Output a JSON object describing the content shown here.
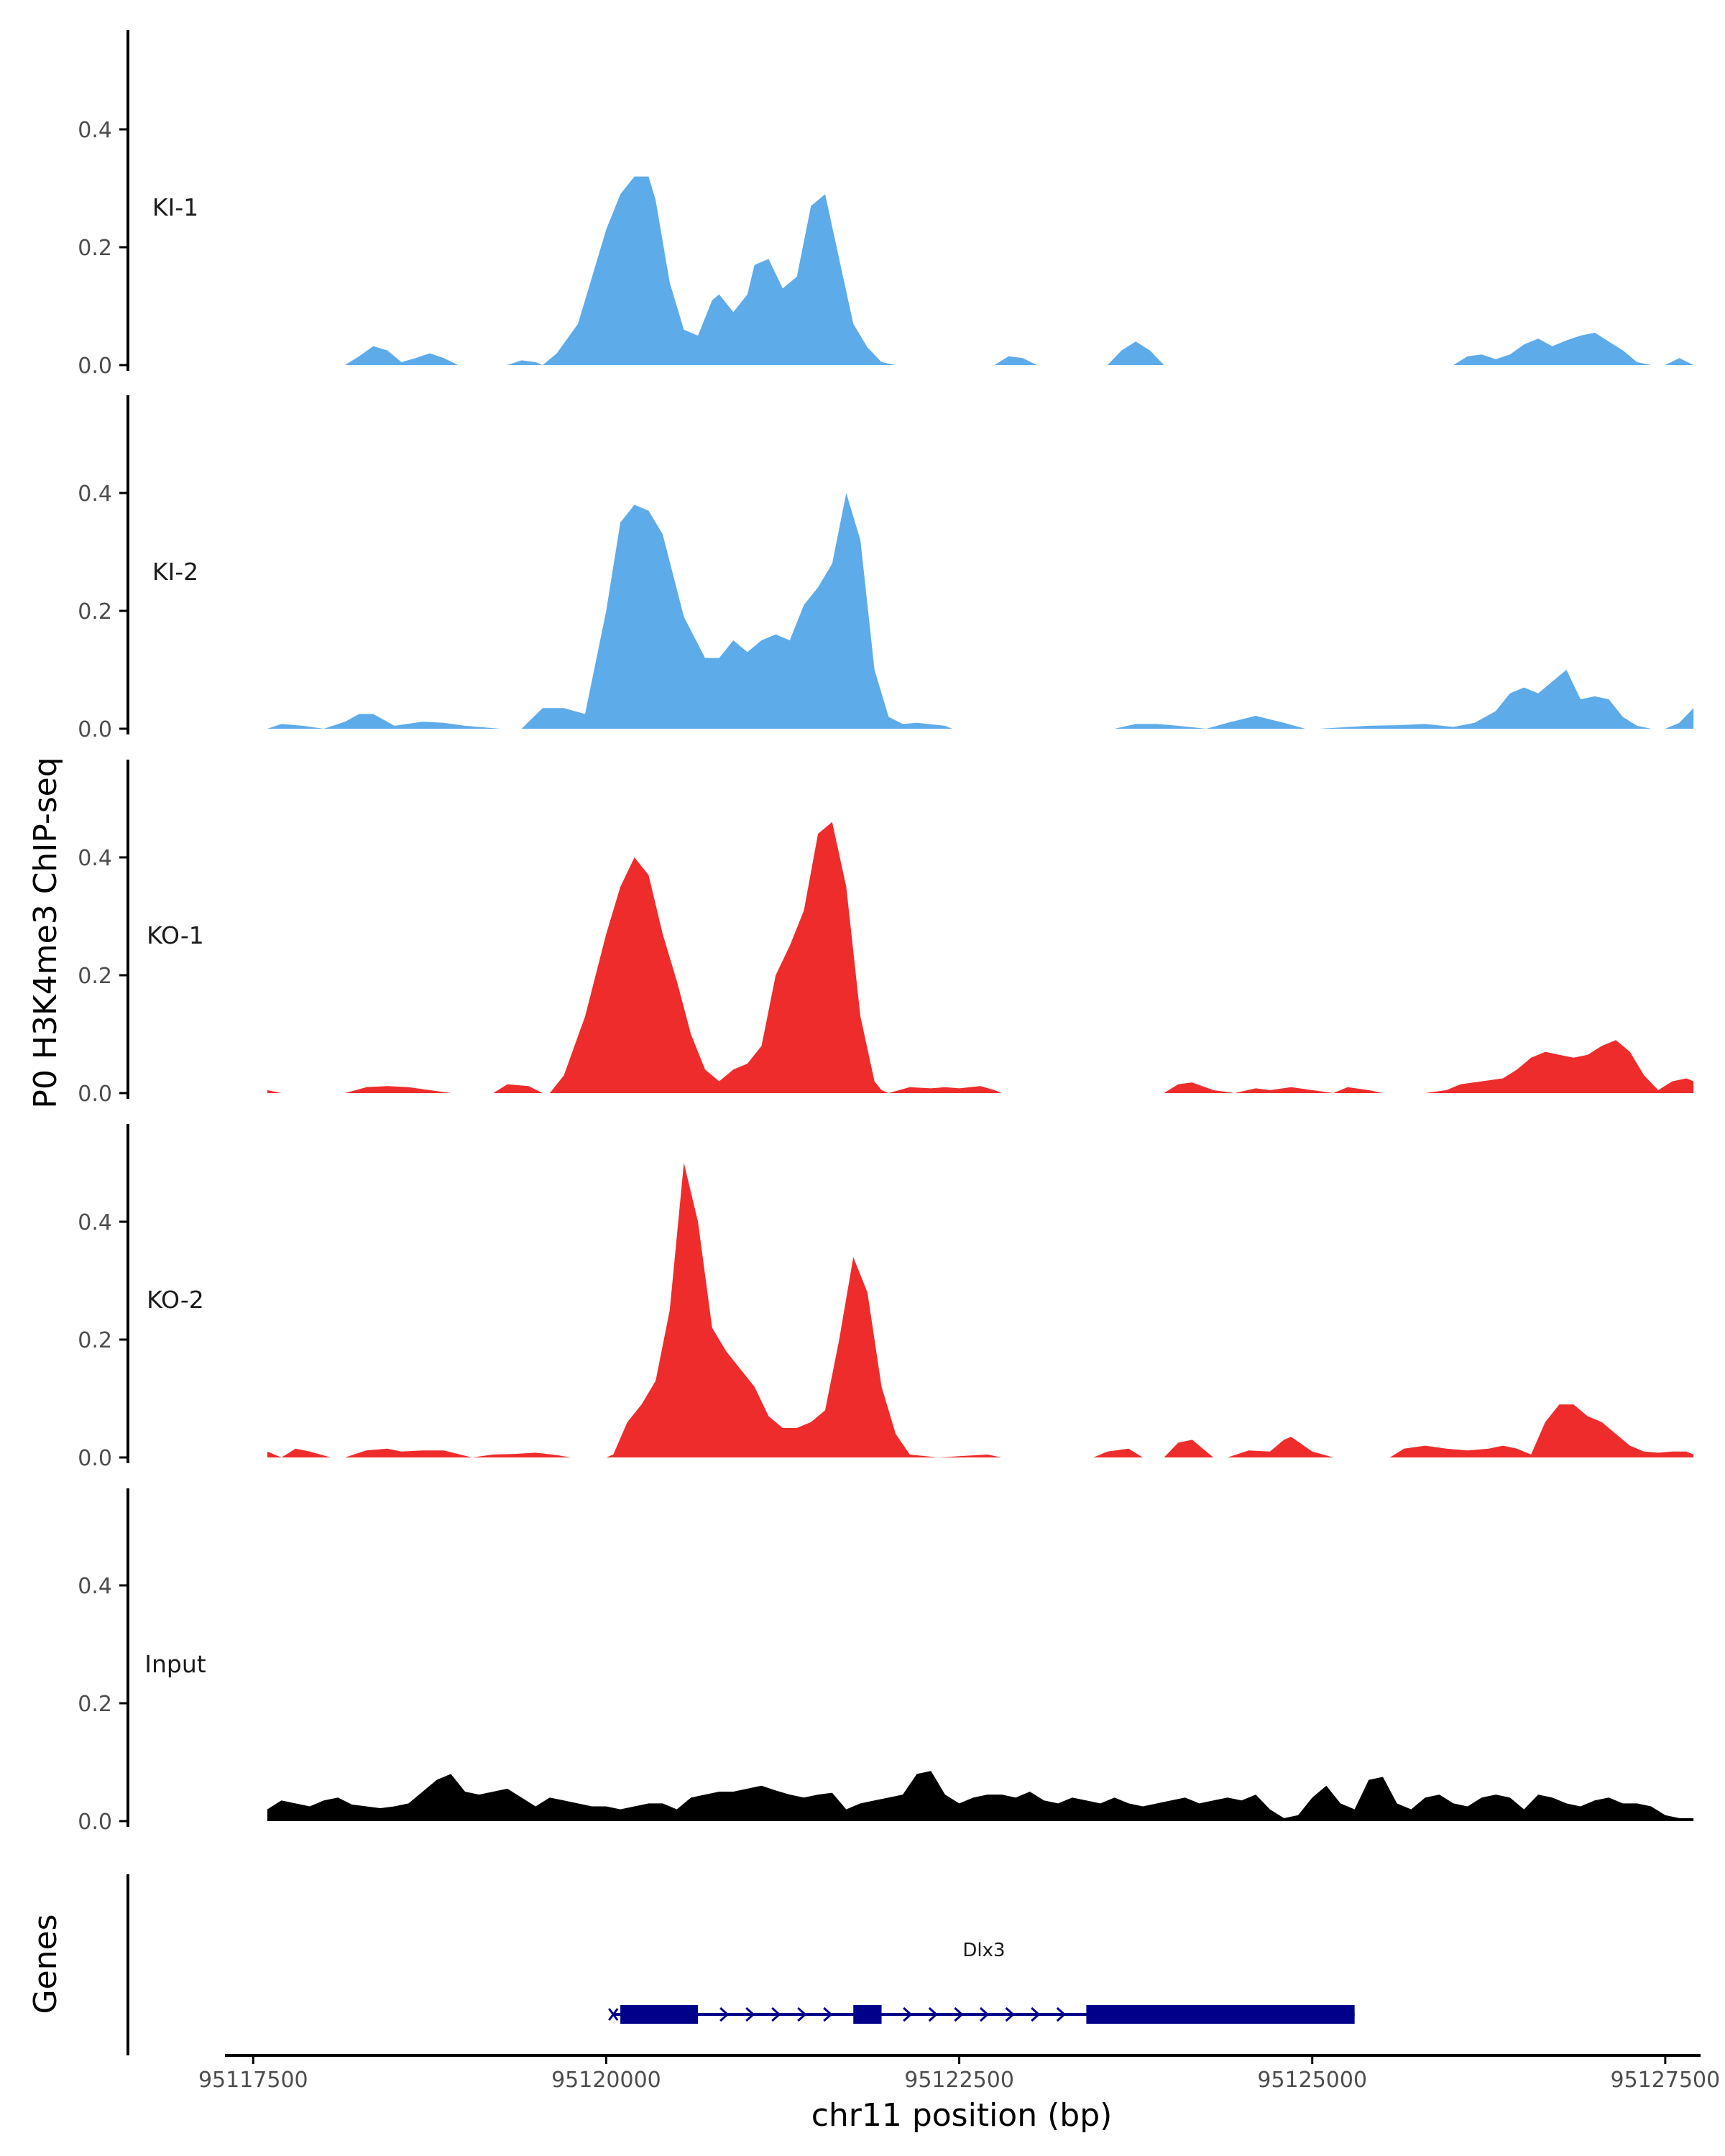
{
  "chart_data": {
    "type": "area",
    "title": "",
    "ylabel": "P0 H3K4me3 ChIP-seq",
    "xlabel": "chr11 position (bp)",
    "xlim": [
      95117300,
      95127750
    ],
    "ylim": [
      0,
      0.56
    ],
    "yticks": [
      0.0,
      0.2,
      0.4
    ],
    "ytick_labels": [
      "0.0",
      "0.2",
      "0.4"
    ],
    "xticks": [
      95117500,
      95120000,
      95122500,
      95125000,
      95127500
    ],
    "xtick_labels": [
      "95117500",
      "95120000",
      "95122500",
      "95125000",
      "95127500"
    ],
    "colors": {
      "KI": "#5eabea",
      "KO": "#ee2c2c",
      "Input": "#000000",
      "gene": "#00008b",
      "axis": "#000000"
    },
    "tracks": [
      {
        "name": "KI-1",
        "color": "#5eabea",
        "x": [
          95118150,
          95118250,
          95118350,
          95118450,
          95118550,
          95118650,
          95118750,
          95118850,
          95118950,
          95119050,
          95119300,
          95119400,
          95119500,
          95119550,
          95119650,
          95119800,
          95119900,
          95120000,
          95120100,
          95120200,
          95120300,
          95120350,
          95120450,
          95120550,
          95120650,
          95120750,
          95120800,
          95120900,
          95121000,
          95121050,
          95121150,
          95121250,
          95121350,
          95121450,
          95121550,
          95121650,
          95121750,
          95121850,
          95121950,
          95122050,
          95122150,
          95122750,
          95122850,
          95122950,
          95123050,
          95123550,
          95123650,
          95123750,
          95123850,
          95123950,
          95126000,
          95126100,
          95126200,
          95126300,
          95126400,
          95126500,
          95126600,
          95126700,
          95126800,
          95126900,
          95127000,
          95127100,
          95127200,
          95127300,
          95127400,
          95127500,
          95127600,
          95127700
        ],
        "y": [
          0,
          0.015,
          0.032,
          0.025,
          0.005,
          0.012,
          0.02,
          0.012,
          0,
          0,
          0,
          0.008,
          0.005,
          0,
          0.02,
          0.07,
          0.15,
          0.23,
          0.29,
          0.32,
          0.32,
          0.28,
          0.14,
          0.06,
          0.05,
          0.11,
          0.12,
          0.09,
          0.12,
          0.17,
          0.18,
          0.13,
          0.15,
          0.27,
          0.29,
          0.18,
          0.07,
          0.03,
          0.005,
          0,
          0,
          0,
          0.015,
          0.012,
          0,
          0,
          0.025,
          0.04,
          0.025,
          0,
          0,
          0.015,
          0.018,
          0.01,
          0.018,
          0.035,
          0.045,
          0.032,
          0.042,
          0.05,
          0.055,
          0.04,
          0.025,
          0.005,
          0,
          0,
          0.012,
          0
        ],
        "value_labels": []
      },
      {
        "name": "KI-2",
        "color": "#5eabea",
        "x": [
          95117600,
          95117700,
          95117850,
          95118000,
          95118150,
          95118250,
          95118350,
          95118500,
          95118700,
          95118850,
          95119000,
          95119250,
          95119400,
          95119550,
          95119700,
          95119850,
          95120000,
          95120100,
          95120200,
          95120300,
          95120400,
          95120550,
          95120700,
          95120800,
          95120900,
          95121000,
          95121100,
          95121200,
          95121300,
          95121400,
          95121500,
          95121600,
          95121700,
          95121800,
          95121900,
          95122000,
          95122100,
          95122200,
          95122400,
          95122450,
          95122900,
          95123600,
          95123750,
          95123900,
          95124050,
          95124250,
          95124400,
          95124600,
          95124800,
          95124950,
          95125050,
          95125400,
          95125600,
          95125800,
          95126000,
          95126150,
          95126300,
          95126400,
          95126500,
          95126600,
          95126700,
          95126800,
          95126900,
          95127000,
          95127100,
          95127200,
          95127300,
          95127400,
          95127500,
          95127600,
          95127700
        ],
        "y": [
          0,
          0.008,
          0.005,
          0,
          0.012,
          0.025,
          0.025,
          0.005,
          0.012,
          0.01,
          0.005,
          0,
          0,
          0.035,
          0.035,
          0.025,
          0.2,
          0.35,
          0.38,
          0.37,
          0.33,
          0.19,
          0.12,
          0.12,
          0.15,
          0.13,
          0.15,
          0.16,
          0.15,
          0.21,
          0.24,
          0.28,
          0.4,
          0.32,
          0.1,
          0.02,
          0.008,
          0.01,
          0.005,
          0,
          0,
          0,
          0.008,
          0.008,
          0.005,
          0,
          0.01,
          0.022,
          0.01,
          0,
          0,
          0.005,
          0.006,
          0.008,
          0.003,
          0.01,
          0.03,
          0.06,
          0.07,
          0.06,
          0.08,
          0.1,
          0.05,
          0.055,
          0.05,
          0.02,
          0.005,
          0,
          0,
          0.01,
          0.035
        ],
        "value_labels": []
      },
      {
        "name": "KO-1",
        "color": "#ee2c2c",
        "x": [
          95117600,
          95117700,
          95118150,
          95118300,
          95118450,
          95118600,
          95118750,
          95118900,
          95119200,
          95119300,
          95119450,
          95119550,
          95119600,
          95119700,
          95119850,
          95120000,
          95120100,
          95120200,
          95120300,
          95120400,
          95120500,
          95120600,
          95120700,
          95120800,
          95120900,
          95121000,
          95121100,
          95121200,
          95121300,
          95121400,
          95121500,
          95121600,
          95121700,
          95121800,
          95121900,
          95121950,
          95122000,
          95122150,
          95122300,
          95122400,
          95122500,
          95122650,
          95122750,
          95122800,
          95123950,
          95124050,
          95124150,
          95124300,
          95124450,
          95124600,
          95124700,
          95124850,
          95125000,
          95125150,
          95125250,
          95125400,
          95125500,
          95125650,
          95125800,
          95125950,
          95126050,
          95126200,
          95126350,
          95126450,
          95126550,
          95126650,
          95126750,
          95126850,
          95126950,
          95127050,
          95127150,
          95127250,
          95127350,
          95127450,
          95127550,
          95127650,
          95127700
        ],
        "y": [
          0.005,
          0,
          0,
          0.01,
          0.012,
          0.01,
          0.005,
          0,
          0,
          0.015,
          0.012,
          0,
          0,
          0.03,
          0.13,
          0.27,
          0.35,
          0.4,
          0.37,
          0.27,
          0.19,
          0.1,
          0.04,
          0.02,
          0.04,
          0.05,
          0.08,
          0.2,
          0.25,
          0.31,
          0.44,
          0.46,
          0.35,
          0.13,
          0.02,
          0.005,
          0,
          0.01,
          0.008,
          0.01,
          0.008,
          0.012,
          0.005,
          0,
          0,
          0.015,
          0.018,
          0.005,
          0,
          0.008,
          0.005,
          0.01,
          0.005,
          0,
          0.01,
          0.005,
          0,
          0,
          0,
          0.005,
          0.015,
          0.02,
          0.025,
          0.04,
          0.06,
          0.07,
          0.065,
          0.06,
          0.065,
          0.08,
          0.09,
          0.07,
          0.03,
          0.005,
          0.02,
          0.025,
          0.02
        ],
        "value_labels": []
      },
      {
        "name": "KO-2",
        "color": "#ee2c2c",
        "x": [
          95117600,
          95117700,
          95117800,
          95117900,
          95118050,
          95118150,
          95118300,
          95118450,
          95118550,
          95118700,
          95118850,
          95119050,
          95119200,
          95119350,
          95119500,
          95119650,
          95119750,
          95119850,
          95120000,
          95120050,
          95120150,
          95120250,
          95120350,
          95120450,
          95120550,
          95120650,
          95120750,
          95120850,
          95120950,
          95121050,
          95121150,
          95121250,
          95121350,
          95121450,
          95121550,
          95121650,
          95121750,
          95121850,
          95121950,
          95122050,
          95122150,
          95122350,
          95122700,
          95122800,
          95123450,
          95123550,
          95123700,
          95123800,
          95123950,
          95124050,
          95124150,
          95124300,
          95124400,
          95124550,
          95124700,
          95124800,
          95124850,
          95125000,
          95125150,
          95125350,
          95125550,
          95125650,
          95125800,
          95125950,
          95126100,
          95126250,
          95126350,
          95126450,
          95126550,
          95126650,
          95126750,
          95126850,
          95126950,
          95127050,
          95127150,
          95127250,
          95127350,
          95127450,
          95127550,
          95127650,
          95127700
        ],
        "y": [
          0.01,
          0,
          0.015,
          0.01,
          0,
          0,
          0.012,
          0.015,
          0.01,
          0.012,
          0.012,
          0,
          0.005,
          0.006,
          0.008,
          0.004,
          0,
          0,
          0,
          0.005,
          0.06,
          0.09,
          0.13,
          0.25,
          0.5,
          0.4,
          0.22,
          0.18,
          0.15,
          0.12,
          0.07,
          0.05,
          0.05,
          0.06,
          0.08,
          0.2,
          0.34,
          0.28,
          0.12,
          0.04,
          0.005,
          0,
          0.005,
          0,
          0,
          0.01,
          0.015,
          0,
          0,
          0.025,
          0.03,
          0,
          0,
          0.012,
          0.01,
          0.03,
          0.035,
          0.01,
          0,
          0,
          0,
          0.015,
          0.02,
          0.015,
          0.012,
          0.015,
          0.02,
          0.015,
          0.005,
          0.06,
          0.09,
          0.09,
          0.07,
          0.06,
          0.04,
          0.02,
          0.01,
          0.008,
          0.01,
          0.01,
          0.005
        ],
        "value_labels": []
      },
      {
        "name": "Input",
        "color": "#000000",
        "x": [
          95117600,
          95117700,
          95117800,
          95117900,
          95118000,
          95118100,
          95118200,
          95118300,
          95118400,
          95118500,
          95118600,
          95118700,
          95118800,
          95118900,
          95119000,
          95119100,
          95119200,
          95119300,
          95119400,
          95119500,
          95119600,
          95119700,
          95119800,
          95119900,
          95120000,
          95120100,
          95120200,
          95120300,
          95120400,
          95120500,
          95120600,
          95120700,
          95120800,
          95120900,
          95121000,
          95121100,
          95121200,
          95121300,
          95121400,
          95121500,
          95121600,
          95121700,
          95121800,
          95121900,
          95122000,
          95122100,
          95122200,
          95122300,
          95122400,
          95122500,
          95122600,
          95122700,
          95122800,
          95122900,
          95123000,
          95123100,
          95123200,
          95123300,
          95123400,
          95123500,
          95123600,
          95123700,
          95123800,
          95123900,
          95124000,
          95124100,
          95124200,
          95124300,
          95124400,
          95124500,
          95124600,
          95124700,
          95124800,
          95124900,
          95125000,
          95125100,
          95125200,
          95125300,
          95125400,
          95125500,
          95125600,
          95125700,
          95125800,
          95125900,
          95126000,
          95126100,
          95126200,
          95126300,
          95126400,
          95126500,
          95126600,
          95126700,
          95126800,
          95126900,
          95127000,
          95127100,
          95127200,
          95127300,
          95127400,
          95127500,
          95127600,
          95127700
        ],
        "y": [
          0.02,
          0.035,
          0.03,
          0.025,
          0.035,
          0.04,
          0.028,
          0.025,
          0.022,
          0.025,
          0.03,
          0.05,
          0.07,
          0.08,
          0.05,
          0.045,
          0.05,
          0.055,
          0.04,
          0.025,
          0.04,
          0.035,
          0.03,
          0.025,
          0.025,
          0.02,
          0.025,
          0.03,
          0.03,
          0.02,
          0.04,
          0.045,
          0.05,
          0.05,
          0.055,
          0.06,
          0.052,
          0.045,
          0.04,
          0.045,
          0.048,
          0.02,
          0.03,
          0.035,
          0.04,
          0.045,
          0.08,
          0.085,
          0.045,
          0.03,
          0.04,
          0.045,
          0.045,
          0.04,
          0.05,
          0.035,
          0.03,
          0.04,
          0.035,
          0.03,
          0.04,
          0.03,
          0.025,
          0.03,
          0.035,
          0.04,
          0.03,
          0.035,
          0.04,
          0.035,
          0.045,
          0.02,
          0.005,
          0.01,
          0.04,
          0.06,
          0.03,
          0.02,
          0.07,
          0.075,
          0.03,
          0.02,
          0.04,
          0.045,
          0.03,
          0.025,
          0.04,
          0.045,
          0.04,
          0.02,
          0.045,
          0.04,
          0.03,
          0.025,
          0.035,
          0.04,
          0.03,
          0.03,
          0.025,
          0.01,
          0.005,
          0.005
        ],
        "value_labels": []
      }
    ],
    "genes": {
      "label": "Genes",
      "items": [
        {
          "name": "Dlx3",
          "start": 95120050,
          "end": 95125300,
          "strand": "+",
          "exons": [
            [
              95120100,
              95120650
            ],
            [
              95121750,
              95121950
            ],
            [
              95123400,
              95125300
            ]
          ]
        }
      ]
    }
  }
}
